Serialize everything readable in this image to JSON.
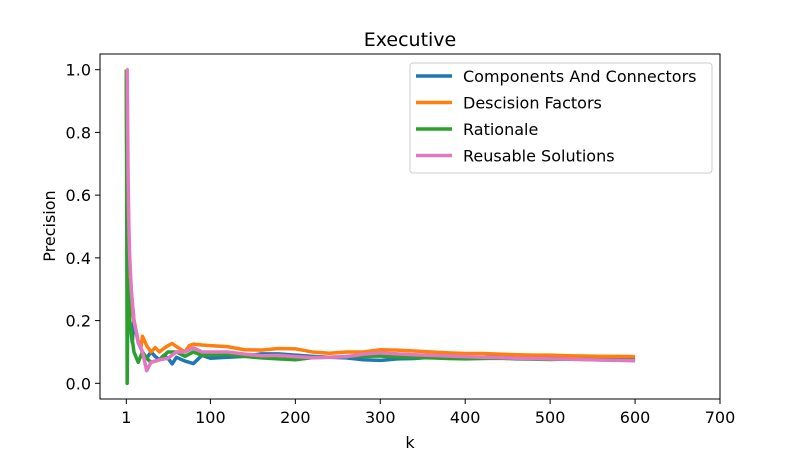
{
  "chart_data": {
    "type": "line",
    "title": "Executive",
    "xlabel": "k",
    "ylabel": "Precision",
    "xlim": [
      -30,
      700
    ],
    "ylim": [
      -0.05,
      1.05
    ],
    "xticks": [
      1,
      100,
      200,
      300,
      400,
      500,
      600,
      700
    ],
    "yticks": [
      0.0,
      0.2,
      0.4,
      0.6,
      0.8,
      1.0
    ],
    "grid": false,
    "legend_position": "top-right",
    "series": [
      {
        "name": "Components And Connectors",
        "color": "#1f77b4",
        "points": [
          [
            1,
            1.0
          ],
          [
            2,
            0.5
          ],
          [
            3,
            0.33
          ],
          [
            5,
            0.2
          ],
          [
            8,
            0.13
          ],
          [
            10,
            0.2
          ],
          [
            15,
            0.13
          ],
          [
            20,
            0.1
          ],
          [
            25,
            0.08
          ],
          [
            30,
            0.1
          ],
          [
            35,
            0.086
          ],
          [
            40,
            0.075
          ],
          [
            45,
            0.089
          ],
          [
            50,
            0.08
          ],
          [
            55,
            0.062
          ],
          [
            60,
            0.083
          ],
          [
            65,
            0.077
          ],
          [
            70,
            0.071
          ],
          [
            80,
            0.063
          ],
          [
            90,
            0.089
          ],
          [
            100,
            0.08
          ],
          [
            120,
            0.083
          ],
          [
            140,
            0.086
          ],
          [
            160,
            0.094
          ],
          [
            180,
            0.094
          ],
          [
            200,
            0.09
          ],
          [
            220,
            0.086
          ],
          [
            240,
            0.083
          ],
          [
            260,
            0.081
          ],
          [
            280,
            0.075
          ],
          [
            300,
            0.073
          ],
          [
            320,
            0.078
          ],
          [
            340,
            0.079
          ],
          [
            360,
            0.083
          ],
          [
            380,
            0.082
          ],
          [
            400,
            0.083
          ],
          [
            420,
            0.083
          ],
          [
            440,
            0.084
          ],
          [
            460,
            0.083
          ],
          [
            480,
            0.081
          ],
          [
            500,
            0.08
          ],
          [
            520,
            0.079
          ],
          [
            540,
            0.078
          ],
          [
            560,
            0.077
          ],
          [
            580,
            0.076
          ],
          [
            600,
            0.075
          ]
        ]
      },
      {
        "name": "Descision Factors",
        "color": "#ff7f0e",
        "points": [
          [
            1,
            1.0
          ],
          [
            2,
            0.5
          ],
          [
            3,
            0.33
          ],
          [
            4,
            0.25
          ],
          [
            5,
            0.2
          ],
          [
            7,
            0.29
          ],
          [
            10,
            0.2
          ],
          [
            15,
            0.133
          ],
          [
            18,
            0.111
          ],
          [
            20,
            0.15
          ],
          [
            25,
            0.12
          ],
          [
            30,
            0.1
          ],
          [
            35,
            0.114
          ],
          [
            40,
            0.1
          ],
          [
            45,
            0.111
          ],
          [
            50,
            0.12
          ],
          [
            55,
            0.127
          ],
          [
            60,
            0.117
          ],
          [
            70,
            0.1
          ],
          [
            75,
            0.12
          ],
          [
            80,
            0.125
          ],
          [
            90,
            0.122
          ],
          [
            100,
            0.12
          ],
          [
            120,
            0.117
          ],
          [
            140,
            0.107
          ],
          [
            160,
            0.106
          ],
          [
            180,
            0.111
          ],
          [
            200,
            0.11
          ],
          [
            220,
            0.1
          ],
          [
            240,
            0.096
          ],
          [
            260,
            0.1
          ],
          [
            280,
            0.1
          ],
          [
            300,
            0.107
          ],
          [
            320,
            0.106
          ],
          [
            340,
            0.103
          ],
          [
            360,
            0.1
          ],
          [
            380,
            0.097
          ],
          [
            400,
            0.095
          ],
          [
            420,
            0.095
          ],
          [
            440,
            0.093
          ],
          [
            460,
            0.091
          ],
          [
            480,
            0.09
          ],
          [
            500,
            0.09
          ],
          [
            520,
            0.088
          ],
          [
            540,
            0.087
          ],
          [
            560,
            0.086
          ],
          [
            580,
            0.086
          ],
          [
            600,
            0.085
          ]
        ]
      },
      {
        "name": "Rationale",
        "color": "#2ca02c",
        "points": [
          [
            1,
            1.0
          ],
          [
            2,
            0.0
          ],
          [
            3,
            0.33
          ],
          [
            5,
            0.2
          ],
          [
            10,
            0.1
          ],
          [
            15,
            0.067
          ],
          [
            20,
            0.1
          ],
          [
            25,
            0.08
          ],
          [
            30,
            0.067
          ],
          [
            40,
            0.075
          ],
          [
            50,
            0.1
          ],
          [
            60,
            0.1
          ],
          [
            70,
            0.086
          ],
          [
            80,
            0.1
          ],
          [
            90,
            0.089
          ],
          [
            100,
            0.09
          ],
          [
            120,
            0.092
          ],
          [
            140,
            0.086
          ],
          [
            160,
            0.081
          ],
          [
            180,
            0.078
          ],
          [
            200,
            0.075
          ],
          [
            220,
            0.082
          ],
          [
            240,
            0.083
          ],
          [
            260,
            0.085
          ],
          [
            280,
            0.086
          ],
          [
            300,
            0.087
          ],
          [
            320,
            0.084
          ],
          [
            340,
            0.082
          ],
          [
            360,
            0.081
          ],
          [
            380,
            0.079
          ],
          [
            400,
            0.078
          ],
          [
            420,
            0.079
          ],
          [
            440,
            0.08
          ],
          [
            460,
            0.078
          ],
          [
            480,
            0.077
          ],
          [
            500,
            0.076
          ],
          [
            520,
            0.077
          ],
          [
            540,
            0.076
          ],
          [
            560,
            0.075
          ],
          [
            580,
            0.074
          ],
          [
            600,
            0.073
          ]
        ]
      },
      {
        "name": "Reusable Solutions",
        "color": "#e377c2",
        "points": [
          [
            1,
            1.0
          ],
          [
            2,
            1.0
          ],
          [
            3,
            0.67
          ],
          [
            4,
            0.5
          ],
          [
            5,
            0.4
          ],
          [
            7,
            0.29
          ],
          [
            10,
            0.2
          ],
          [
            15,
            0.133
          ],
          [
            20,
            0.1
          ],
          [
            25,
            0.04
          ],
          [
            30,
            0.067
          ],
          [
            40,
            0.075
          ],
          [
            50,
            0.08
          ],
          [
            60,
            0.1
          ],
          [
            70,
            0.1
          ],
          [
            80,
            0.113
          ],
          [
            90,
            0.1
          ],
          [
            100,
            0.1
          ],
          [
            120,
            0.1
          ],
          [
            140,
            0.093
          ],
          [
            160,
            0.088
          ],
          [
            180,
            0.089
          ],
          [
            200,
            0.085
          ],
          [
            220,
            0.082
          ],
          [
            240,
            0.083
          ],
          [
            260,
            0.085
          ],
          [
            280,
            0.093
          ],
          [
            300,
            0.097
          ],
          [
            320,
            0.094
          ],
          [
            340,
            0.091
          ],
          [
            360,
            0.089
          ],
          [
            380,
            0.087
          ],
          [
            400,
            0.085
          ],
          [
            420,
            0.083
          ],
          [
            440,
            0.082
          ],
          [
            460,
            0.08
          ],
          [
            480,
            0.079
          ],
          [
            500,
            0.078
          ],
          [
            520,
            0.077
          ],
          [
            540,
            0.076
          ],
          [
            560,
            0.074
          ],
          [
            580,
            0.073
          ],
          [
            600,
            0.072
          ]
        ]
      }
    ]
  }
}
